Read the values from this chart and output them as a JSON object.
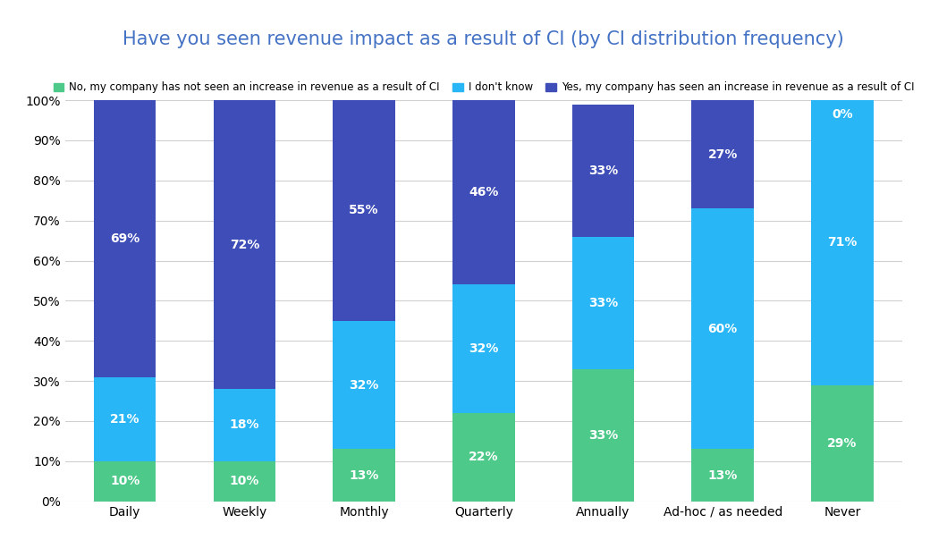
{
  "title": "Have you seen revenue impact as a result of CI (by CI distribution frequency)",
  "categories": [
    "Daily",
    "Weekly",
    "Monthly",
    "Quarterly",
    "Annually",
    "Ad-hoc / as needed",
    "Never"
  ],
  "series": {
    "no": {
      "label": "No, my company has not seen an increase in revenue as a result of CI",
      "color": "#4dc98a",
      "values": [
        10,
        10,
        13,
        22,
        33,
        13,
        29
      ]
    },
    "dont_know": {
      "label": "I don't know",
      "color": "#29b6f6",
      "values": [
        21,
        18,
        32,
        32,
        33,
        60,
        71
      ]
    },
    "yes": {
      "label": "Yes, my company has seen an increase in revenue as a result of CI",
      "color": "#3f4db8",
      "values": [
        69,
        72,
        55,
        46,
        33,
        27,
        0
      ]
    }
  },
  "ylim": [
    0,
    100
  ],
  "yticks": [
    0,
    10,
    20,
    30,
    40,
    50,
    60,
    70,
    80,
    90,
    100
  ],
  "ytick_labels": [
    "0%",
    "10%",
    "20%",
    "30%",
    "40%",
    "50%",
    "60%",
    "70%",
    "80%",
    "90%",
    "100%"
  ],
  "title_color": "#4472c4",
  "title_fontsize": 15,
  "legend_fontsize": 8.5,
  "tick_fontsize": 10,
  "label_fontsize": 10,
  "background_color": "#ffffff",
  "grid_color": "#d0d0d0",
  "bar_width": 0.52
}
